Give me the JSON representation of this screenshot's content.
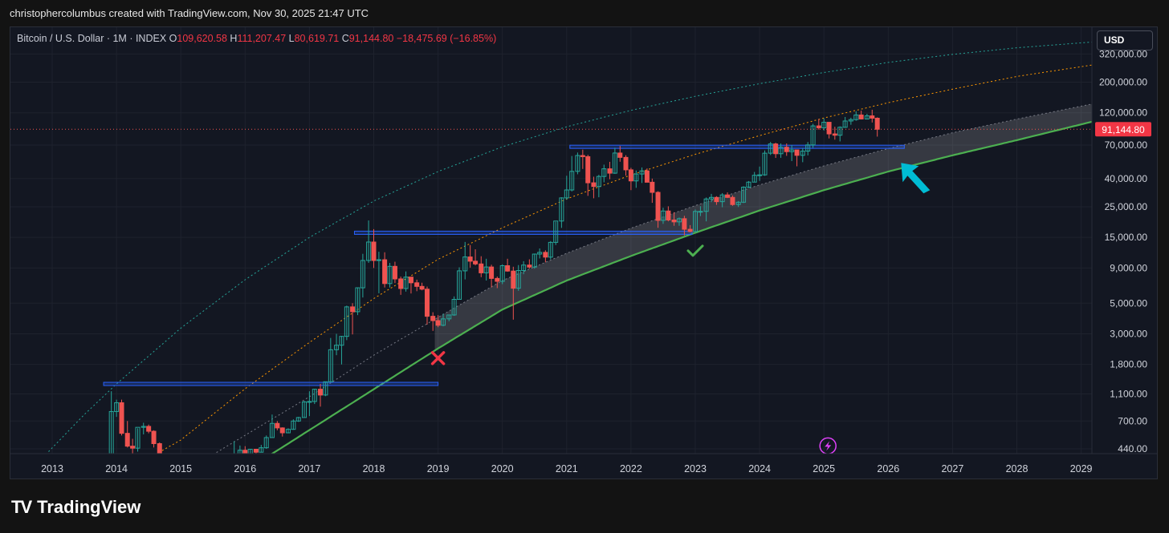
{
  "header": {
    "text": "christophercolumbus created with TradingView.com, Nov 30, 2025 21:47 UTC"
  },
  "legend": {
    "symbol": "Bitcoin / U.S. Dollar · 1M · INDEX",
    "open_label": "O",
    "open": "109,620.58",
    "high_label": "H",
    "high": "111,207.47",
    "low_label": "L",
    "low": "80,619.71",
    "close_label": "C",
    "close": "91,144.80",
    "change": "−18,475.69 (−16.85%)"
  },
  "currency_button": "USD",
  "last_price_label": "91,144.80",
  "brand": {
    "name": "TradingView",
    "logo": "TV"
  },
  "icons": {
    "flash": "lightning-icon",
    "cross": "cross-icon",
    "check": "check-icon",
    "arrow": "arrow-icon"
  },
  "colors": {
    "bg": "#131722",
    "up": "#26a69a",
    "down": "#ef5350",
    "support": "#4caf50",
    "orange": "#ff9800",
    "level": "#2962ff",
    "arrow": "#00bcd4",
    "flash": "#e040fb"
  },
  "chart_data": {
    "type": "candlestick",
    "scale": "log",
    "x_ticks": [
      "2013",
      "2014",
      "2015",
      "2016",
      "2017",
      "2018",
      "2019",
      "2020",
      "2021",
      "2022",
      "2023",
      "2024",
      "2025",
      "2026",
      "2027",
      "2028",
      "2029"
    ],
    "y_ticks": [
      "320,000.00",
      "200,000.00",
      "120,000.00",
      "70,000.00",
      "40,000.00",
      "25,000.00",
      "15,000.00",
      "9,000.00",
      "5,000.00",
      "3,000.00",
      "1,800.00",
      "1,100.00",
      "700.00",
      "440.00"
    ],
    "ylim": [
      400,
      380000
    ],
    "last_price": 91144.8,
    "ohlc_monthly": [
      [
        2013.92,
        200,
        1150,
        180,
        820
      ],
      [
        2014.0,
        820,
        1000,
        750,
        950
      ],
      [
        2014.08,
        950,
        1000,
        550,
        570
      ],
      [
        2014.17,
        570,
        700,
        450,
        460
      ],
      [
        2014.25,
        460,
        520,
        350,
        445
      ],
      [
        2014.33,
        445,
        620,
        420,
        630
      ],
      [
        2014.42,
        630,
        680,
        560,
        640
      ],
      [
        2014.5,
        640,
        660,
        570,
        590
      ],
      [
        2014.58,
        590,
        600,
        450,
        480
      ],
      [
        2014.67,
        480,
        490,
        380,
        390
      ],
      [
        2015.25,
        235,
        250,
        220,
        230
      ],
      [
        2015.33,
        230,
        245,
        220,
        225
      ],
      [
        2015.42,
        225,
        265,
        220,
        262
      ],
      [
        2015.5,
        262,
        300,
        250,
        285
      ],
      [
        2015.58,
        285,
        290,
        230,
        232
      ],
      [
        2015.67,
        232,
        240,
        225,
        236
      ],
      [
        2015.75,
        236,
        330,
        235,
        315
      ],
      [
        2015.83,
        315,
        500,
        300,
        377
      ],
      [
        2015.92,
        377,
        465,
        350,
        430
      ],
      [
        2016.0,
        430,
        460,
        355,
        370
      ],
      [
        2016.08,
        370,
        440,
        365,
        437
      ],
      [
        2016.17,
        437,
        440,
        400,
        416
      ],
      [
        2016.25,
        416,
        470,
        415,
        448
      ],
      [
        2016.33,
        448,
        550,
        440,
        531
      ],
      [
        2016.42,
        531,
        780,
        530,
        673
      ],
      [
        2016.5,
        673,
        700,
        600,
        624
      ],
      [
        2016.58,
        624,
        630,
        540,
        575
      ],
      [
        2016.67,
        575,
        620,
        570,
        609
      ],
      [
        2016.75,
        609,
        720,
        605,
        700
      ],
      [
        2016.83,
        700,
        750,
        690,
        742
      ],
      [
        2016.92,
        742,
        980,
        740,
        963
      ],
      [
        2017.0,
        963,
        1150,
        760,
        970
      ],
      [
        2017.08,
        970,
        1200,
        930,
        1190
      ],
      [
        2017.17,
        1190,
        1300,
        890,
        1080
      ],
      [
        2017.25,
        1080,
        1350,
        1060,
        1348
      ],
      [
        2017.33,
        1348,
        2800,
        1340,
        2300
      ],
      [
        2017.42,
        2300,
        3000,
        2100,
        2480
      ],
      [
        2017.5,
        2480,
        2900,
        1800,
        2875
      ],
      [
        2017.58,
        2875,
        4800,
        2700,
        4703
      ],
      [
        2017.67,
        4703,
        5000,
        2970,
        4338
      ],
      [
        2017.75,
        4338,
        6450,
        4100,
        6468
      ],
      [
        2017.83,
        6468,
        11400,
        5500,
        10200
      ],
      [
        2017.92,
        10200,
        19900,
        9800,
        13880
      ],
      [
        2018.0,
        13880,
        17200,
        9000,
        10200
      ],
      [
        2018.08,
        10200,
        11800,
        5900,
        10330
      ],
      [
        2018.17,
        10330,
        11700,
        6500,
        6940
      ],
      [
        2018.25,
        6940,
        9800,
        6500,
        9250
      ],
      [
        2018.33,
        9250,
        9990,
        7000,
        7500
      ],
      [
        2018.42,
        7500,
        7800,
        5750,
        6390
      ],
      [
        2018.5,
        6390,
        8500,
        6070,
        7730
      ],
      [
        2018.58,
        7730,
        7760,
        5880,
        7030
      ],
      [
        2018.67,
        7030,
        7410,
        6110,
        6620
      ],
      [
        2018.75,
        6620,
        7040,
        6200,
        6320
      ],
      [
        2018.83,
        6320,
        6600,
        3500,
        4020
      ],
      [
        2018.92,
        4020,
        4300,
        3150,
        3740
      ],
      [
        2019.0,
        3740,
        4100,
        3350,
        3460
      ],
      [
        2019.08,
        3460,
        4200,
        3400,
        3850
      ],
      [
        2019.17,
        3850,
        4100,
        3700,
        4110
      ],
      [
        2019.25,
        4110,
        5600,
        4050,
        5330
      ],
      [
        2019.33,
        5330,
        9100,
        5300,
        8580
      ],
      [
        2019.42,
        8580,
        13900,
        7440,
        10820
      ],
      [
        2019.5,
        10820,
        13200,
        9050,
        10080
      ],
      [
        2019.58,
        10080,
        12300,
        9400,
        9630
      ],
      [
        2019.67,
        9630,
        10950,
        7720,
        8300
      ],
      [
        2019.75,
        8300,
        10500,
        7300,
        9150
      ],
      [
        2019.83,
        9150,
        9500,
        6500,
        7560
      ],
      [
        2019.92,
        7560,
        7800,
        6430,
        7200
      ],
      [
        2020.0,
        7200,
        9560,
        6870,
        9350
      ],
      [
        2020.08,
        9350,
        10500,
        8450,
        8550
      ],
      [
        2020.17,
        8550,
        9190,
        3800,
        6420
      ],
      [
        2020.25,
        6420,
        9450,
        6150,
        8630
      ],
      [
        2020.33,
        8630,
        10080,
        8110,
        9450
      ],
      [
        2020.42,
        9450,
        10400,
        8900,
        9140
      ],
      [
        2020.5,
        9140,
        11450,
        8900,
        11350
      ],
      [
        2020.58,
        11350,
        12470,
        10550,
        11680
      ],
      [
        2020.67,
        11680,
        12090,
        9900,
        10790
      ],
      [
        2020.75,
        10790,
        14100,
        10400,
        13800
      ],
      [
        2020.83,
        13800,
        19480,
        13200,
        19700
      ],
      [
        2020.92,
        19700,
        29300,
        17570,
        28990
      ],
      [
        2021.0,
        28990,
        41950,
        28130,
        33100
      ],
      [
        2021.08,
        33100,
        58350,
        32300,
        45140
      ],
      [
        2021.17,
        45140,
        61800,
        43000,
        58800
      ],
      [
        2021.25,
        58800,
        64850,
        47000,
        57700
      ],
      [
        2021.33,
        57700,
        59500,
        30000,
        37300
      ],
      [
        2021.42,
        37300,
        41300,
        28800,
        35040
      ],
      [
        2021.5,
        35040,
        42600,
        29300,
        41460
      ],
      [
        2021.58,
        41460,
        50500,
        37600,
        47100
      ],
      [
        2021.67,
        47100,
        52900,
        39600,
        43800
      ],
      [
        2021.75,
        43800,
        66900,
        43300,
        61300
      ],
      [
        2021.83,
        61300,
        69000,
        53000,
        57000
      ],
      [
        2021.92,
        57000,
        59100,
        42000,
        46300
      ],
      [
        2022.0,
        46300,
        47900,
        33000,
        38480
      ],
      [
        2022.08,
        38480,
        45800,
        34300,
        43190
      ],
      [
        2022.17,
        43190,
        48200,
        37200,
        45510
      ],
      [
        2022.25,
        45510,
        47400,
        37600,
        37650
      ],
      [
        2022.33,
        37650,
        40000,
        26700,
        31790
      ],
      [
        2022.42,
        31790,
        32400,
        17600,
        19920
      ],
      [
        2022.5,
        19920,
        24600,
        18800,
        23300
      ],
      [
        2022.58,
        23300,
        25200,
        19600,
        20050
      ],
      [
        2022.67,
        20050,
        22800,
        18200,
        19430
      ],
      [
        2022.75,
        19430,
        20900,
        18200,
        20490
      ],
      [
        2022.83,
        20490,
        21500,
        15500,
        17170
      ],
      [
        2022.92,
        17170,
        18400,
        16300,
        16540
      ],
      [
        2023.0,
        16540,
        23900,
        16500,
        23130
      ],
      [
        2023.08,
        23130,
        25250,
        21400,
        23150
      ],
      [
        2023.17,
        23150,
        29200,
        19600,
        28470
      ],
      [
        2023.25,
        28470,
        31000,
        27000,
        29230
      ],
      [
        2023.33,
        29230,
        29820,
        25800,
        27220
      ],
      [
        2023.42,
        27220,
        31400,
        24800,
        30470
      ],
      [
        2023.5,
        30470,
        31800,
        28900,
        29230
      ],
      [
        2023.58,
        29230,
        30200,
        25400,
        25930
      ],
      [
        2023.67,
        25930,
        27500,
        24900,
        26970
      ],
      [
        2023.75,
        26970,
        35200,
        26600,
        34660
      ],
      [
        2023.83,
        34660,
        38400,
        34100,
        37720
      ],
      [
        2023.92,
        37720,
        44700,
        37600,
        42280
      ],
      [
        2024.0,
        42280,
        48900,
        38500,
        42580
      ],
      [
        2024.08,
        42580,
        64000,
        41900,
        61130
      ],
      [
        2024.17,
        61130,
        73800,
        59300,
        71330
      ],
      [
        2024.25,
        71330,
        72800,
        56500,
        60600
      ],
      [
        2024.33,
        60600,
        71900,
        56600,
        67500
      ],
      [
        2024.42,
        67500,
        71900,
        58500,
        62700
      ],
      [
        2024.5,
        62700,
        70000,
        53600,
        64600
      ],
      [
        2024.58,
        64600,
        65000,
        49100,
        58970
      ],
      [
        2024.67,
        58970,
        66500,
        52600,
        63300
      ],
      [
        2024.75,
        63300,
        73600,
        58900,
        70200
      ],
      [
        2024.83,
        70200,
        99800,
        66800,
        96400
      ],
      [
        2024.92,
        96400,
        108300,
        90500,
        93400
      ],
      [
        2025.0,
        93400,
        109300,
        89200,
        102400
      ],
      [
        2025.08,
        102400,
        102500,
        78200,
        84350
      ],
      [
        2025.17,
        84350,
        95000,
        76600,
        82500
      ],
      [
        2025.25,
        82500,
        95700,
        74400,
        94200
      ],
      [
        2025.33,
        94200,
        111900,
        93400,
        104600
      ],
      [
        2025.42,
        104600,
        110500,
        98200,
        107100
      ],
      [
        2025.5,
        107100,
        123200,
        105100,
        115700
      ],
      [
        2025.58,
        115700,
        124500,
        107300,
        108200
      ],
      [
        2025.67,
        108200,
        117900,
        107300,
        114000
      ],
      [
        2025.75,
        114000,
        126200,
        102000,
        109620
      ],
      [
        2025.83,
        109620.58,
        111207.47,
        80619.71,
        91144.8
      ]
    ],
    "horizontal_levels": [
      {
        "price": 1300,
        "x_from": 2013.8,
        "x_to": 2019.0
      },
      {
        "price": 16200,
        "x_from": 2017.7,
        "x_to": 2022.95
      },
      {
        "price": 68000,
        "x_from": 2021.05,
        "x_to": 2026.25
      }
    ],
    "curves": [
      {
        "name": "green-solid",
        "style": "solid",
        "color": "#4caf50",
        "points": [
          [
            2016.4,
            400
          ],
          [
            2019.0,
            2350
          ],
          [
            2020.0,
            4500
          ],
          [
            2021.0,
            7300
          ],
          [
            2022.0,
            11000
          ],
          [
            2023.0,
            16200
          ],
          [
            2024.0,
            23500
          ],
          [
            2025.0,
            33000
          ],
          [
            2026.0,
            45000
          ],
          [
            2027.0,
            59000
          ],
          [
            2028.0,
            76000
          ],
          [
            2029.3,
            107000
          ]
        ]
      },
      {
        "name": "grey-band-top",
        "style": "dotted",
        "color": "#787b86",
        "points": [
          [
            2015.5,
            400
          ],
          [
            2017.0,
            1050
          ],
          [
            2018.0,
            2100
          ],
          [
            2019.0,
            3950
          ],
          [
            2020.0,
            7300
          ],
          [
            2021.0,
            11500
          ],
          [
            2022.0,
            17500
          ],
          [
            2023.0,
            25500
          ],
          [
            2024.0,
            36000
          ],
          [
            2025.0,
            49500
          ],
          [
            2026.0,
            66000
          ],
          [
            2027.0,
            86000
          ],
          [
            2028.0,
            108000
          ],
          [
            2029.3,
            143000
          ]
        ]
      },
      {
        "name": "orange-dotted",
        "style": "dotted",
        "color": "#ff9800",
        "points": [
          [
            2014.6,
            400
          ],
          [
            2015.0,
            510
          ],
          [
            2016.0,
            1200
          ],
          [
            2017.0,
            2600
          ],
          [
            2018.0,
            5400
          ],
          [
            2019.0,
            10400
          ],
          [
            2020.0,
            17600
          ],
          [
            2021.0,
            28500
          ],
          [
            2022.0,
            42500
          ],
          [
            2023.0,
            60000
          ],
          [
            2024.0,
            82000
          ],
          [
            2025.0,
            110000
          ],
          [
            2026.0,
            142000
          ],
          [
            2027.0,
            178000
          ],
          [
            2028.0,
            220000
          ],
          [
            2029.3,
            272000
          ]
        ]
      },
      {
        "name": "green-dotted",
        "style": "dotted",
        "color": "#26a69a",
        "points": [
          [
            2012.9,
            400
          ],
          [
            2013.5,
            780
          ],
          [
            2014.0,
            1300
          ],
          [
            2015.0,
            3300
          ],
          [
            2016.0,
            7400
          ],
          [
            2017.0,
            15000
          ],
          [
            2018.0,
            27500
          ],
          [
            2019.0,
            45000
          ],
          [
            2020.0,
            68000
          ],
          [
            2021.0,
            95000
          ],
          [
            2022.0,
            125000
          ],
          [
            2023.0,
            158000
          ],
          [
            2024.0,
            195000
          ],
          [
            2025.0,
            235000
          ],
          [
            2026.0,
            278000
          ],
          [
            2027.0,
            318000
          ],
          [
            2028.0,
            355000
          ],
          [
            2029.3,
            395000
          ]
        ]
      }
    ]
  }
}
